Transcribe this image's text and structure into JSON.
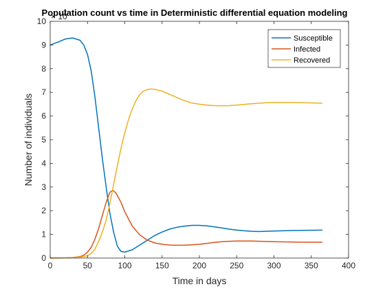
{
  "chart_data": {
    "type": "line",
    "title": "Population count vs time in Deterministic differential equation modeling",
    "xlabel": "Time in days",
    "ylabel": "Number of individuals",
    "y_multiplier_label": "× 10",
    "y_multiplier_exponent": "7",
    "xlim": [
      0,
      400
    ],
    "ylim": [
      0,
      10
    ],
    "xticks": [
      "0",
      "50",
      "100",
      "150",
      "200",
      "250",
      "300",
      "350",
      "400"
    ],
    "yticks": [
      "0",
      "1",
      "2",
      "3",
      "4",
      "5",
      "6",
      "7",
      "8",
      "9",
      "10"
    ],
    "grid": false,
    "legend_position": "top-right",
    "series": [
      {
        "name": "Susceptible",
        "color": "#0072BD",
        "points": [
          [
            0,
            9.0
          ],
          [
            10,
            9.12
          ],
          [
            20,
            9.25
          ],
          [
            30,
            9.3
          ],
          [
            40,
            9.2
          ],
          [
            45,
            9.0
          ],
          [
            50,
            8.6
          ],
          [
            55,
            7.9
          ],
          [
            60,
            6.8
          ],
          [
            65,
            5.5
          ],
          [
            70,
            4.2
          ],
          [
            75,
            3.0
          ],
          [
            80,
            1.9
          ],
          [
            85,
            1.1
          ],
          [
            90,
            0.5
          ],
          [
            95,
            0.28
          ],
          [
            100,
            0.25
          ],
          [
            110,
            0.35
          ],
          [
            120,
            0.55
          ],
          [
            130,
            0.75
          ],
          [
            140,
            0.95
          ],
          [
            150,
            1.1
          ],
          [
            160,
            1.22
          ],
          [
            170,
            1.3
          ],
          [
            180,
            1.35
          ],
          [
            190,
            1.38
          ],
          [
            200,
            1.38
          ],
          [
            210,
            1.36
          ],
          [
            220,
            1.32
          ],
          [
            230,
            1.27
          ],
          [
            240,
            1.22
          ],
          [
            250,
            1.18
          ],
          [
            260,
            1.15
          ],
          [
            270,
            1.13
          ],
          [
            280,
            1.12
          ],
          [
            290,
            1.13
          ],
          [
            300,
            1.14
          ],
          [
            320,
            1.16
          ],
          [
            340,
            1.17
          ],
          [
            365,
            1.18
          ]
        ]
      },
      {
        "name": "Infected",
        "color": "#D95319",
        "points": [
          [
            0,
            0
          ],
          [
            20,
            0.005
          ],
          [
            30,
            0.02
          ],
          [
            40,
            0.06
          ],
          [
            45,
            0.12
          ],
          [
            50,
            0.25
          ],
          [
            55,
            0.45
          ],
          [
            60,
            0.8
          ],
          [
            65,
            1.25
          ],
          [
            70,
            1.8
          ],
          [
            75,
            2.35
          ],
          [
            80,
            2.78
          ],
          [
            84,
            2.86
          ],
          [
            88,
            2.75
          ],
          [
            95,
            2.35
          ],
          [
            100,
            1.95
          ],
          [
            110,
            1.35
          ],
          [
            120,
            0.98
          ],
          [
            130,
            0.76
          ],
          [
            140,
            0.64
          ],
          [
            150,
            0.58
          ],
          [
            160,
            0.55
          ],
          [
            170,
            0.54
          ],
          [
            180,
            0.54
          ],
          [
            190,
            0.56
          ],
          [
            200,
            0.58
          ],
          [
            210,
            0.62
          ],
          [
            220,
            0.66
          ],
          [
            230,
            0.69
          ],
          [
            240,
            0.71
          ],
          [
            250,
            0.72
          ],
          [
            260,
            0.72
          ],
          [
            270,
            0.72
          ],
          [
            280,
            0.71
          ],
          [
            300,
            0.69
          ],
          [
            320,
            0.68
          ],
          [
            340,
            0.67
          ],
          [
            365,
            0.67
          ]
        ]
      },
      {
        "name": "Recovered",
        "color": "#EDB120",
        "points": [
          [
            0,
            0
          ],
          [
            20,
            0.005
          ],
          [
            30,
            0.02
          ],
          [
            40,
            0.04
          ],
          [
            45,
            0.06
          ],
          [
            50,
            0.1
          ],
          [
            55,
            0.2
          ],
          [
            60,
            0.38
          ],
          [
            65,
            0.7
          ],
          [
            70,
            1.1
          ],
          [
            75,
            1.6
          ],
          [
            80,
            2.3
          ],
          [
            85,
            3.1
          ],
          [
            90,
            3.9
          ],
          [
            95,
            4.65
          ],
          [
            100,
            5.3
          ],
          [
            105,
            5.85
          ],
          [
            110,
            6.3
          ],
          [
            115,
            6.65
          ],
          [
            120,
            6.9
          ],
          [
            125,
            7.05
          ],
          [
            130,
            7.12
          ],
          [
            135,
            7.14
          ],
          [
            140,
            7.13
          ],
          [
            150,
            7.05
          ],
          [
            160,
            6.92
          ],
          [
            170,
            6.78
          ],
          [
            180,
            6.65
          ],
          [
            190,
            6.55
          ],
          [
            200,
            6.5
          ],
          [
            210,
            6.46
          ],
          [
            220,
            6.44
          ],
          [
            230,
            6.43
          ],
          [
            240,
            6.44
          ],
          [
            250,
            6.46
          ],
          [
            260,
            6.49
          ],
          [
            270,
            6.52
          ],
          [
            280,
            6.54
          ],
          [
            290,
            6.56
          ],
          [
            300,
            6.57
          ],
          [
            310,
            6.57
          ],
          [
            320,
            6.57
          ],
          [
            340,
            6.56
          ],
          [
            365,
            6.54
          ]
        ]
      }
    ]
  }
}
